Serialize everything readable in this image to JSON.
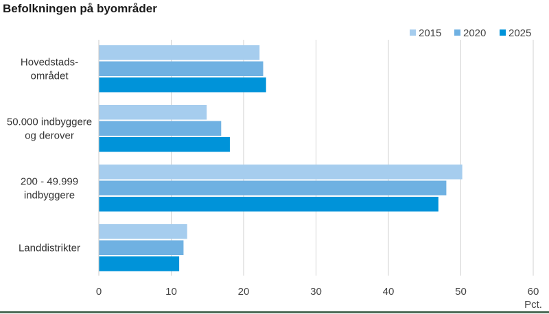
{
  "chart_data": {
    "type": "bar",
    "orientation": "horizontal",
    "title": "Befolkningen på byområder",
    "xlabel": "Pct.",
    "ylabel": "",
    "xlim": [
      0,
      60
    ],
    "xticks": [
      0,
      10,
      20,
      30,
      40,
      50,
      60
    ],
    "grid": true,
    "legend_position": "top-right",
    "categories": [
      [
        "Hovedstads-",
        "området"
      ],
      [
        "50.000 indbyggere",
        "og derover"
      ],
      [
        "200 - 49.999",
        "indbyggere"
      ],
      [
        "Landdistrikter"
      ]
    ],
    "series": [
      {
        "name": "2015",
        "color": "#a6cdee",
        "values": [
          22.2,
          14.9,
          50.2,
          12.2
        ]
      },
      {
        "name": "2020",
        "color": "#6fb1e2",
        "values": [
          22.7,
          16.9,
          48.0,
          11.7
        ]
      },
      {
        "name": "2025",
        "color": "#0093d9",
        "values": [
          23.1,
          18.1,
          46.9,
          11.1
        ]
      }
    ]
  }
}
